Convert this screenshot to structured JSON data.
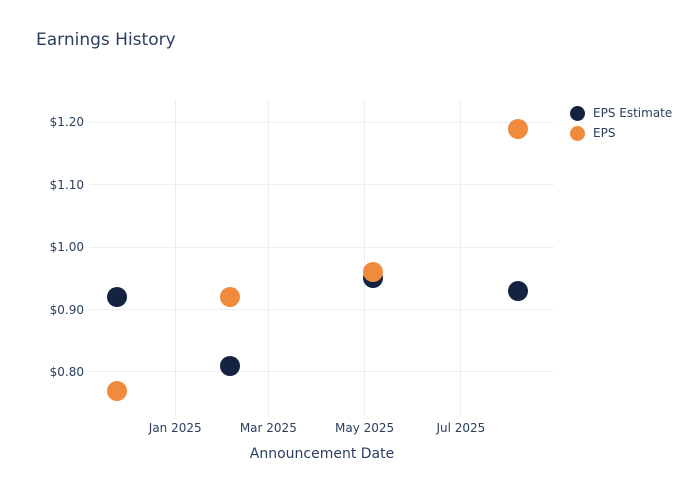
{
  "chart_data": {
    "type": "scatter",
    "title": "Earnings History",
    "xlabel": "Announcement Date",
    "ylabel": "",
    "grid": true,
    "legend_position": "right-top-outside",
    "colors": {
      "text": "#2a3f5f",
      "grid": "#ebeff6",
      "background": "#ffffff",
      "eps_estimate": "#142440",
      "eps": "#f08b3e"
    },
    "x_ticks": [
      {
        "label": "Jan 2025",
        "date": "2025-01-01"
      },
      {
        "label": "Mar 2025",
        "date": "2025-03-01"
      },
      {
        "label": "May 2025",
        "date": "2025-05-01"
      },
      {
        "label": "Jul 2025",
        "date": "2025-07-01"
      }
    ],
    "y_ticks": [
      {
        "label": "$0.80",
        "value": 0.8
      },
      {
        "label": "$0.90",
        "value": 0.9
      },
      {
        "label": "$1.00",
        "value": 1.0
      },
      {
        "label": "$1.10",
        "value": 1.1
      },
      {
        "label": "$1.20",
        "value": 1.2
      }
    ],
    "xlim": [
      "2024-11-08",
      "2025-08-29"
    ],
    "ylim": [
      0.731,
      1.236
    ],
    "series": [
      {
        "name": "EPS Estimate",
        "color": "#142440",
        "points": [
          {
            "date": "2024-11-25",
            "value": 0.92
          },
          {
            "date": "2025-02-05",
            "value": 0.81
          },
          {
            "date": "2025-05-06",
            "value": 0.95
          },
          {
            "date": "2025-08-06",
            "value": 0.93
          }
        ]
      },
      {
        "name": "EPS",
        "color": "#f08b3e",
        "points": [
          {
            "date": "2024-11-25",
            "value": 0.77
          },
          {
            "date": "2025-02-05",
            "value": 0.92
          },
          {
            "date": "2025-05-06",
            "value": 0.96
          },
          {
            "date": "2025-08-06",
            "value": 1.19
          }
        ]
      }
    ]
  }
}
